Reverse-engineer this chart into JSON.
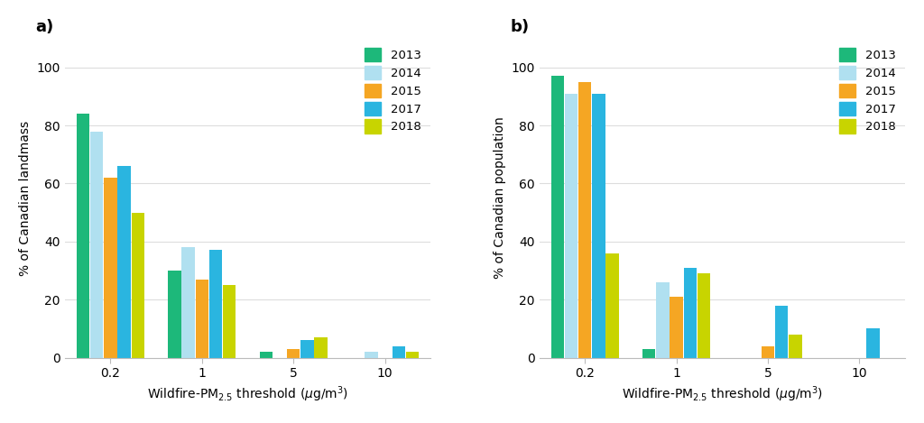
{
  "years": [
    "2013",
    "2014",
    "2015",
    "2017",
    "2018"
  ],
  "colors": [
    "#1db87a",
    "#b0e0f0",
    "#f5a623",
    "#2ab5e0",
    "#c8d400"
  ],
  "thresholds": [
    "0.2",
    "1",
    "5",
    "10"
  ],
  "landmass": {
    "0.2": [
      84,
      78,
      62,
      66,
      50
    ],
    "1": [
      30,
      38,
      27,
      37,
      25
    ],
    "5": [
      2,
      0,
      3,
      6,
      7
    ],
    "10": [
      0,
      2,
      0,
      4,
      2
    ]
  },
  "population": {
    "0.2": [
      97,
      91,
      95,
      91,
      36
    ],
    "1": [
      3,
      26,
      21,
      31,
      29
    ],
    "5": [
      0,
      0,
      4,
      18,
      8
    ],
    "10": [
      0,
      0,
      0,
      10,
      0
    ]
  },
  "ylabel_a": "% of Canadian landmass",
  "ylabel_b": "% of Canadian population",
  "ylim": [
    0,
    110
  ],
  "yticks": [
    0,
    20,
    40,
    60,
    80,
    100
  ],
  "background_color": "#ffffff",
  "bar_width": 0.15,
  "group_positions": [
    0,
    1,
    2,
    3
  ]
}
